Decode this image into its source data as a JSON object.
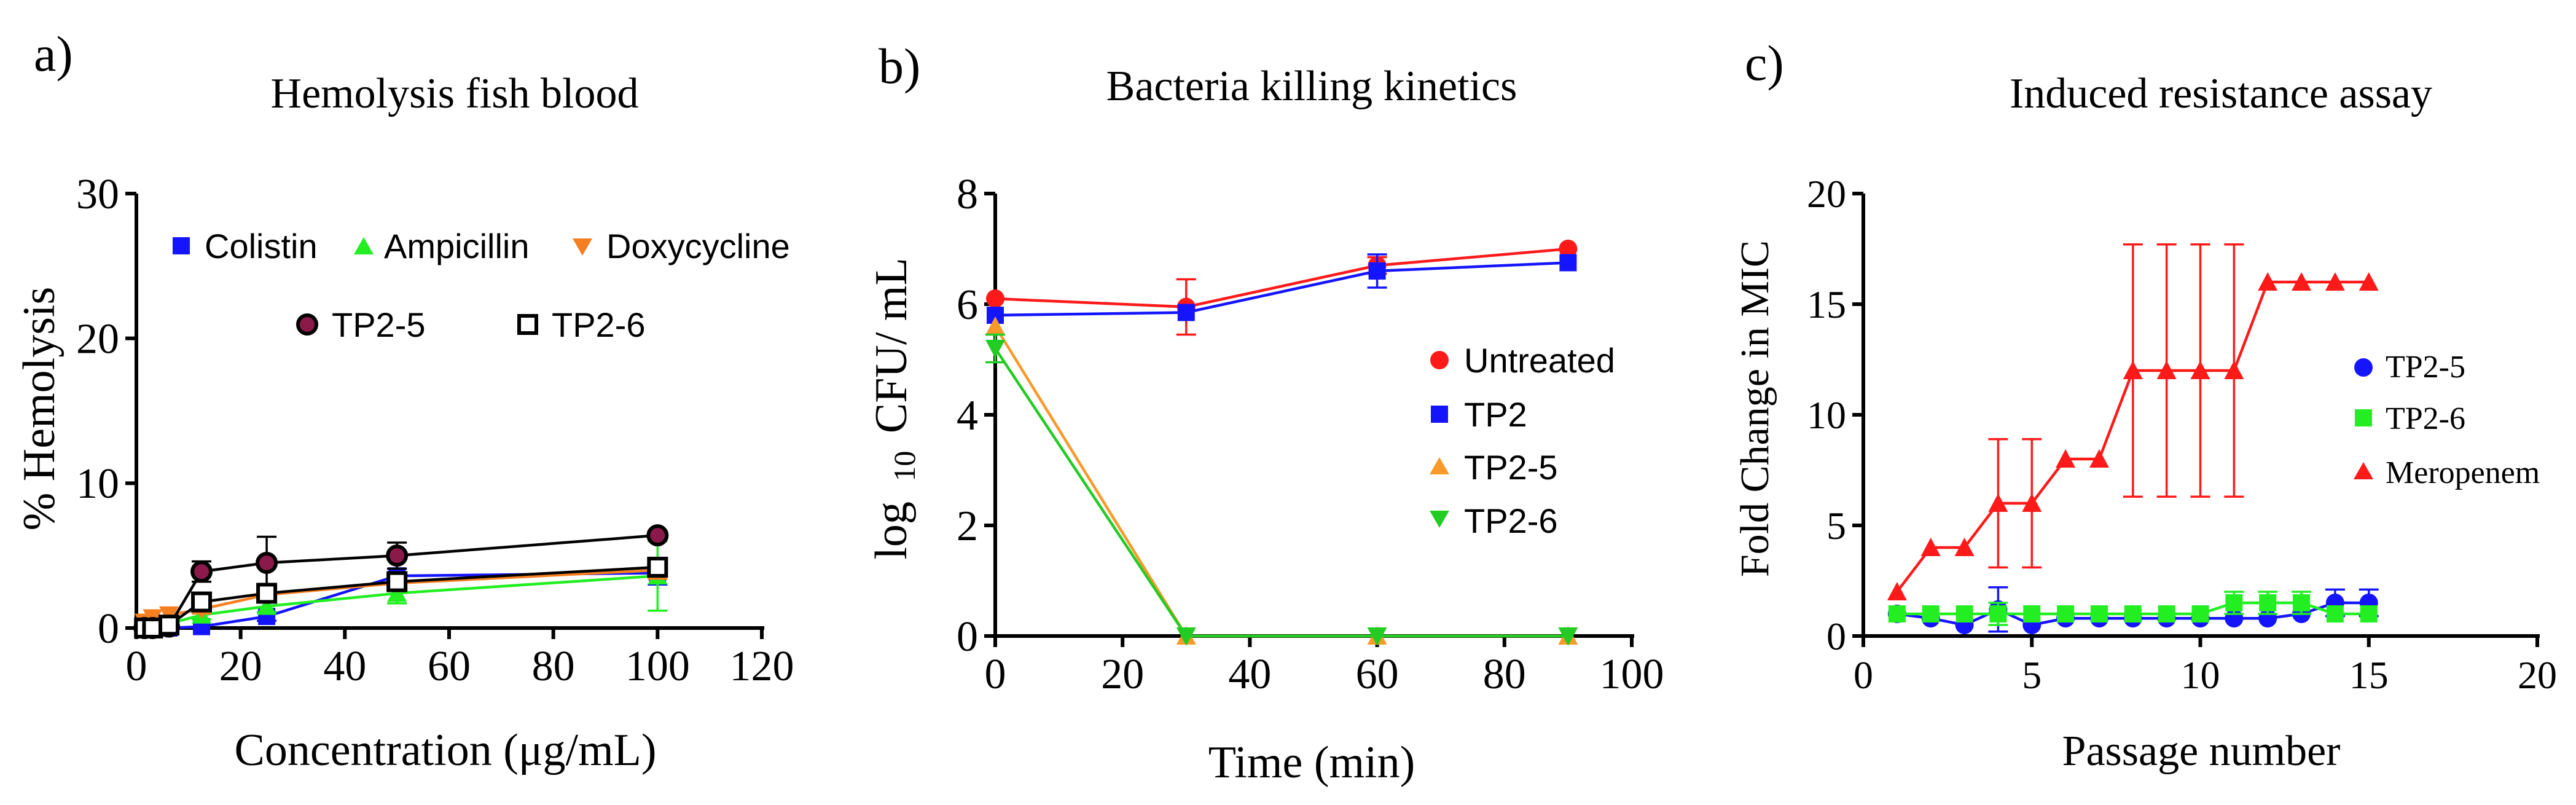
{
  "chart_data": [
    {
      "type": "line",
      "panel_label": "a)",
      "title": "Hemolysis fish blood",
      "xlabel": "Concentration (μg/mL)",
      "ylabel": "% Hemolysis",
      "xlim": [
        0,
        120
      ],
      "ylim": [
        0,
        30
      ],
      "xticks": [
        0,
        20,
        40,
        60,
        80,
        100,
        120
      ],
      "yticks": [
        0,
        10,
        20,
        30
      ],
      "xtick_labels": [
        "0",
        "20",
        "40",
        "60",
        "80",
        "100",
        "120"
      ],
      "ytick_labels": [
        "0",
        "10",
        "20",
        "30"
      ],
      "series": [
        {
          "name": "Colistin",
          "color": "#1414ff",
          "marker": "square",
          "x": [
            1.56,
            3.12,
            6.25,
            12.5,
            25,
            50,
            100
          ],
          "y": [
            0,
            0,
            0,
            0.1,
            0.8,
            3.6,
            3.8
          ],
          "err": [
            0,
            0,
            0,
            0,
            0.3,
            0.5,
            0.8
          ]
        },
        {
          "name": "Ampicillin",
          "color": "#22ee22",
          "marker": "triangle-up",
          "x": [
            1.56,
            3.12,
            6.25,
            12.5,
            25,
            50,
            100
          ],
          "y": [
            0,
            0.2,
            0.3,
            0.9,
            1.5,
            2.4,
            3.6
          ],
          "err": [
            0,
            0,
            0,
            0.3,
            0.4,
            0.7,
            2.4
          ]
        },
        {
          "name": "Doxycycline",
          "color": "#f57f20",
          "marker": "triangle-down",
          "x": [
            1.56,
            3.12,
            6.25,
            12.5,
            25,
            50,
            100
          ],
          "y": [
            0.4,
            0.7,
            0.9,
            1.3,
            2.3,
            3.1,
            4.0
          ],
          "err": [
            0,
            0,
            0,
            0.3,
            0.4,
            0.5,
            0.6
          ]
        },
        {
          "name": "TP2-5",
          "color": "#000000",
          "fill": "#8b1a4a",
          "marker": "circle",
          "x": [
            1.56,
            3.12,
            6.25,
            12.5,
            25,
            50,
            100
          ],
          "y": [
            0,
            0,
            0.1,
            3.9,
            4.5,
            5.0,
            6.4
          ],
          "err": [
            0,
            0,
            0,
            0.7,
            1.8,
            0.9,
            0.3
          ]
        },
        {
          "name": "TP2-6",
          "color": "#000000",
          "fill": "#ffffff",
          "marker": "square-open",
          "x": [
            1.56,
            3.12,
            6.25,
            12.5,
            25,
            50,
            100
          ],
          "y": [
            0,
            0,
            0.2,
            1.8,
            2.4,
            3.2,
            4.2
          ],
          "err": [
            0,
            0,
            0,
            0.3,
            0.4,
            0.4,
            0.4
          ]
        }
      ],
      "legend": [
        [
          "Colistin",
          "Ampicillin",
          "Doxycycline"
        ],
        [
          "TP2-5",
          "TP2-6"
        ]
      ],
      "legend_position": "top-right"
    },
    {
      "type": "line",
      "panel_label": "b)",
      "title": "Bacteria killing kinetics",
      "xlabel": "Time (min)",
      "ylabel_main": "log",
      "ylabel_sub": "10",
      "ylabel_rest": "CFU/ mL",
      "xlim": [
        0,
        100
      ],
      "ylim": [
        0,
        8
      ],
      "xticks": [
        0,
        20,
        40,
        60,
        80,
        100
      ],
      "yticks": [
        0,
        2,
        4,
        6,
        8
      ],
      "xtick_labels": [
        "0",
        "20",
        "40",
        "60",
        "80",
        "100"
      ],
      "ytick_labels": [
        "0",
        "2",
        "4",
        "6",
        "8"
      ],
      "series": [
        {
          "name": "Untreated",
          "color": "#ff1a1a",
          "marker": "circle",
          "x": [
            0,
            30,
            60,
            90
          ],
          "y": [
            6.1,
            5.95,
            6.7,
            7.0
          ],
          "err": [
            0,
            0.5,
            0.15,
            0
          ]
        },
        {
          "name": "TP2",
          "color": "#1414ff",
          "marker": "square",
          "x": [
            0,
            30,
            60,
            90
          ],
          "y": [
            5.8,
            5.85,
            6.6,
            6.75
          ],
          "err": [
            0,
            0,
            0.3,
            0
          ]
        },
        {
          "name": "TP2-5",
          "color": "#f79a2a",
          "marker": "triangle-up",
          "x": [
            0,
            30,
            60,
            90
          ],
          "y": [
            5.6,
            0,
            0,
            0
          ],
          "err": [
            0,
            0,
            0,
            0
          ]
        },
        {
          "name": "TP2-6",
          "color": "#22cc22",
          "marker": "triangle-down",
          "x": [
            0,
            30,
            60,
            90
          ],
          "y": [
            5.2,
            0,
            0,
            0
          ],
          "err": [
            0.25,
            0,
            0,
            0
          ]
        }
      ],
      "legend_position": "right"
    },
    {
      "type": "line",
      "panel_label": "c)",
      "title": "Induced resistance assay",
      "xlabel": "Passage number",
      "ylabel": "Fold Change in MIC",
      "xlim": [
        0,
        20
      ],
      "ylim": [
        0,
        20
      ],
      "xticks": [
        0,
        5,
        10,
        15,
        20
      ],
      "yticks": [
        0,
        5,
        10,
        15,
        20
      ],
      "xtick_labels": [
        "0",
        "5",
        "10",
        "15",
        "20"
      ],
      "ytick_labels": [
        "0",
        "5",
        "10",
        "15",
        "20"
      ],
      "series": [
        {
          "name": "TP2-5",
          "color": "#1414ff",
          "marker": "circle",
          "x": [
            1,
            2,
            3,
            4,
            5,
            6,
            7,
            8,
            9,
            10,
            11,
            12,
            13,
            14,
            15
          ],
          "y": [
            1,
            0.8,
            0.5,
            1.2,
            0.5,
            0.8,
            0.8,
            0.8,
            0.8,
            0.8,
            0.8,
            0.8,
            1.0,
            1.5,
            1.5
          ],
          "err": [
            0,
            0,
            0,
            1.0,
            0,
            0,
            0,
            0,
            0,
            0,
            0,
            0,
            0,
            0.6,
            0.6
          ]
        },
        {
          "name": "TP2-6",
          "color": "#22ee22",
          "marker": "square",
          "x": [
            1,
            2,
            3,
            4,
            5,
            6,
            7,
            8,
            9,
            10,
            11,
            12,
            13,
            14,
            15
          ],
          "y": [
            1,
            1,
            1,
            1,
            1,
            1,
            1,
            1,
            1,
            1,
            1.5,
            1.5,
            1.5,
            1,
            1
          ],
          "err": [
            0,
            0,
            0,
            0.5,
            0,
            0,
            0,
            0,
            0,
            0,
            0.5,
            0.5,
            0.5,
            0,
            0
          ]
        },
        {
          "name": "Meropenem",
          "color": "#ff1a1a",
          "marker": "triangle-up",
          "x": [
            1,
            2,
            3,
            4,
            5,
            6,
            7,
            8,
            9,
            10,
            11,
            12,
            13,
            14,
            15
          ],
          "y": [
            2,
            4,
            4,
            6,
            6,
            8,
            8,
            12,
            12,
            12,
            12,
            16,
            16,
            16,
            16
          ],
          "err": [
            0,
            0,
            0,
            2.9,
            2.9,
            0,
            0,
            5.7,
            5.7,
            5.7,
            5.7,
            0,
            0,
            0,
            0
          ]
        }
      ],
      "legend_position": "right"
    }
  ]
}
